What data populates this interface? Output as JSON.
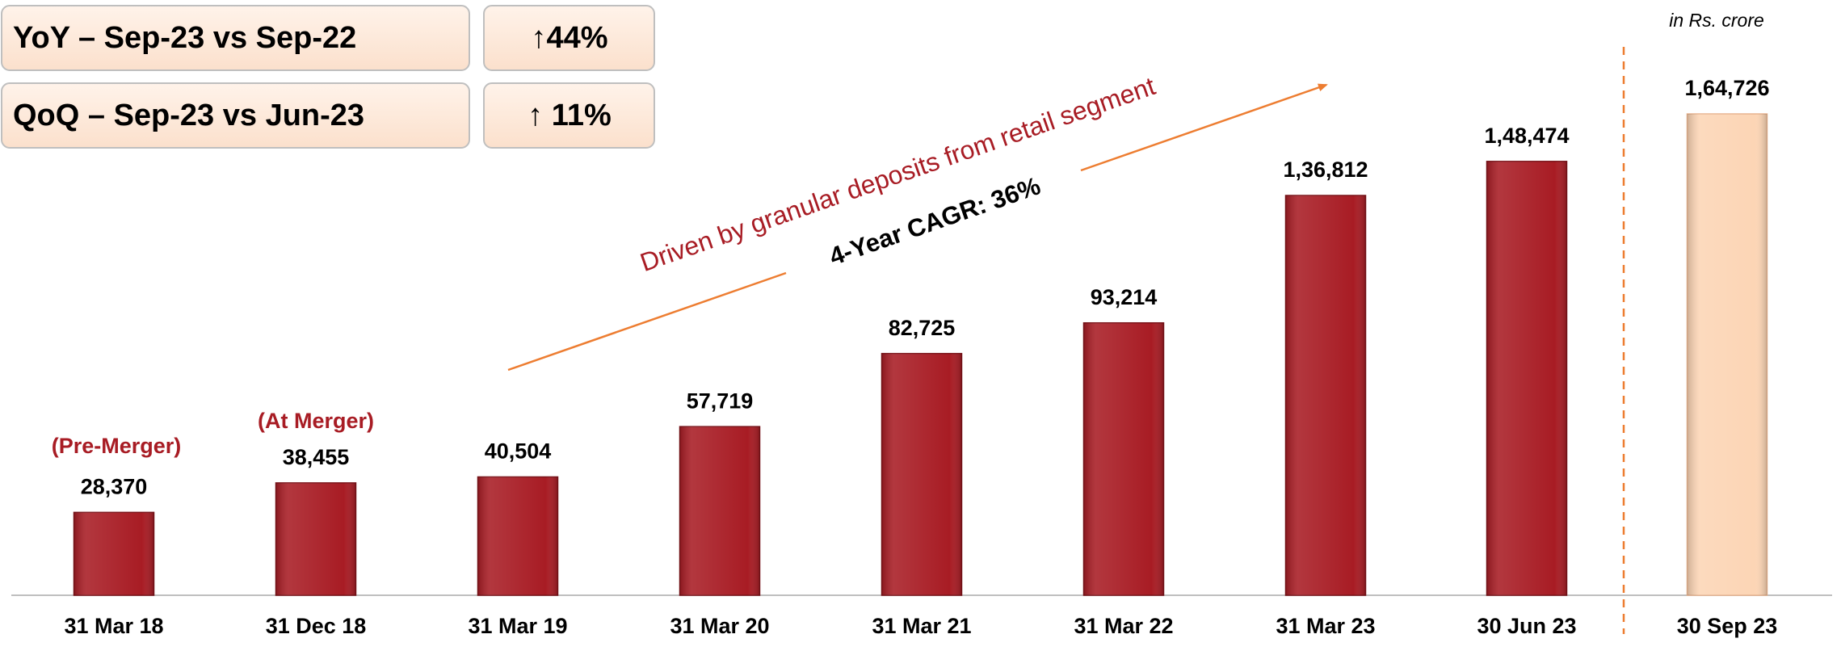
{
  "chart_data": {
    "type": "bar",
    "categories": [
      "31 Mar 18",
      "31 Dec 18",
      "31 Mar 19",
      "31 Mar 20",
      "31 Mar 21",
      "31 Mar 22",
      "31 Mar 23",
      "30 Jun 23",
      "30 Sep 23"
    ],
    "values": [
      28370,
      38455,
      40504,
      57719,
      82725,
      93214,
      136812,
      148474,
      164726
    ],
    "value_labels": [
      "28,370",
      "38,455",
      "40,504",
      "57,719",
      "82,725",
      "93,214",
      "1,36,812",
      "1,48,474",
      "1,64,726"
    ],
    "colors": [
      "#a81c24",
      "#a81c24",
      "#a81c24",
      "#a81c24",
      "#a81c24",
      "#a81c24",
      "#a81c24",
      "#a81c24",
      "#fcd5b5"
    ],
    "unit": "in Rs. crore",
    "pre_merger": "(Pre-Merger)",
    "at_merger": "(At Merger)",
    "trend": "Driven by granular deposits from retail segment",
    "cagr": "4-Year CAGR: 36%",
    "summary": [
      {
        "label": "YoY – Sep-23 vs Sep-22",
        "value": "↑44%"
      },
      {
        "label": "QoQ – Sep-23 vs Jun-23",
        "value": "↑ 11%"
      }
    ]
  }
}
